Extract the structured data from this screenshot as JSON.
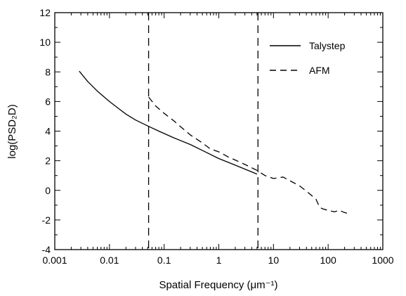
{
  "chart_data": {
    "type": "line",
    "xscale": "log",
    "xlim": [
      0.001,
      1000
    ],
    "ylim": [
      -4,
      12
    ],
    "grid": false,
    "legend_position": "top-right",
    "xlabel": "Spatial Frequency (μm⁻¹)",
    "ylabel": "log(PSD₂D)",
    "xticks": [
      0.001,
      0.01,
      0.1,
      1,
      10,
      100,
      1000
    ],
    "xtick_labels": [
      "0.001",
      "0.01",
      "0.1",
      "1",
      "10",
      "100",
      "1000"
    ],
    "yticks": [
      -4,
      -2,
      0,
      2,
      4,
      6,
      8,
      10,
      12
    ],
    "ytick_labels": [
      "-4",
      "-2",
      "0",
      "2",
      "4",
      "6",
      "8",
      "10",
      "12"
    ],
    "vlines": [
      0.052,
      5.2
    ],
    "series": [
      {
        "name": "Talystep",
        "style": "solid",
        "x": [
          0.0028,
          0.004,
          0.006,
          0.01,
          0.015,
          0.02,
          0.03,
          0.05,
          0.08,
          0.15,
          0.3,
          0.5,
          1,
          2,
          5
        ],
        "y": [
          8.05,
          7.35,
          6.7,
          6.0,
          5.5,
          5.15,
          4.75,
          4.35,
          4.0,
          3.55,
          3.1,
          2.7,
          2.15,
          1.7,
          1.1
        ]
      },
      {
        "name": "AFM",
        "style": "dashed",
        "x": [
          0.052,
          0.07,
          0.1,
          0.15,
          0.2,
          0.3,
          0.5,
          0.7,
          1,
          1.5,
          2,
          3,
          5,
          7,
          10,
          15,
          20,
          30,
          40,
          50,
          60,
          70,
          80,
          100,
          130,
          160,
          200,
          250
        ],
        "y": [
          6.3,
          5.7,
          5.2,
          4.7,
          4.3,
          3.75,
          3.2,
          2.8,
          2.6,
          2.25,
          2.05,
          1.75,
          1.35,
          1.0,
          0.8,
          0.9,
          0.65,
          0.3,
          -0.05,
          -0.35,
          -0.6,
          -1.15,
          -1.25,
          -1.35,
          -1.45,
          -1.35,
          -1.5,
          -1.6
        ]
      }
    ]
  }
}
